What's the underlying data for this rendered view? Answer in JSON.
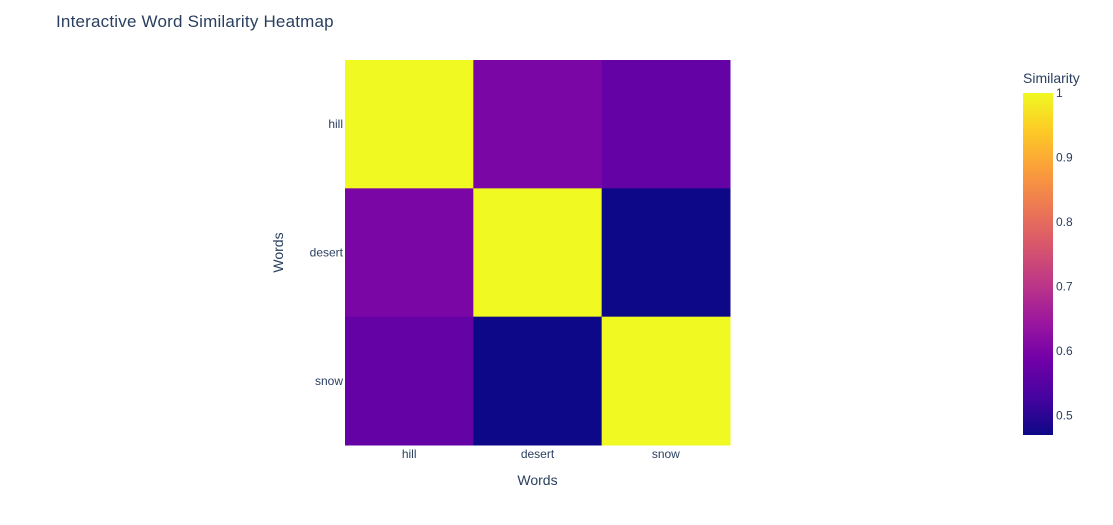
{
  "chart_data": {
    "type": "heatmap",
    "title": "Interactive Word Similarity Heatmap",
    "x": [
      "hill",
      "desert",
      "snow"
    ],
    "y": [
      "hill",
      "desert",
      "snow"
    ],
    "z": [
      [
        1.0,
        0.6,
        0.57
      ],
      [
        0.6,
        1.0,
        0.47
      ],
      [
        0.57,
        0.47,
        1.0
      ]
    ],
    "xlabel": "Words",
    "ylabel": "Words",
    "colorscale": "plasma",
    "zlim": [
      0.47,
      1.0
    ],
    "colorbar": {
      "title": "Similarity",
      "ticks": [
        "0.5",
        "0.6",
        "0.7",
        "0.8",
        "0.9",
        "1"
      ],
      "tick_values": [
        0.5,
        0.6,
        0.7,
        0.8,
        0.9,
        1.0
      ]
    },
    "colors": {
      "text": "#2a3f5f",
      "background": "#ffffff"
    }
  }
}
